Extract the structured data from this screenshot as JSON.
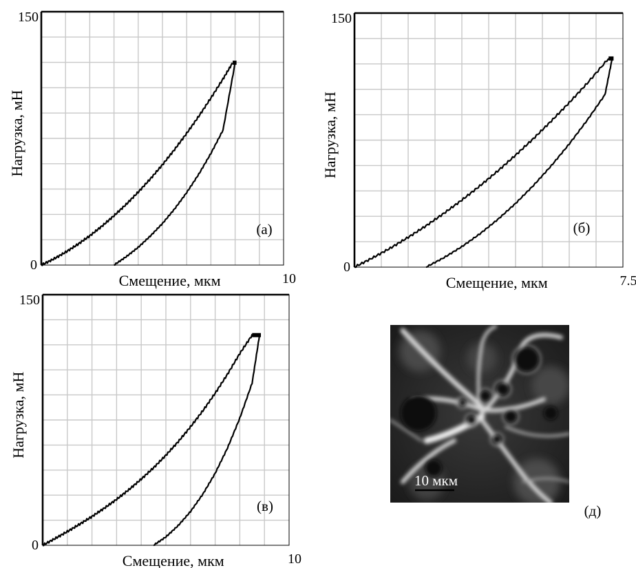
{
  "chart_data": [
    {
      "type": "line",
      "panel_tag": "(а)",
      "xlabel": "Смещение, мкм",
      "ylabel": "Нагрузка, мН",
      "xlim": [
        0,
        10
      ],
      "ylim": [
        0,
        150
      ],
      "x_tick_labels": [
        "10"
      ],
      "y_tick_labels": [
        "0",
        "150"
      ],
      "grid": true,
      "series": [
        {
          "x": [
            0,
            0.5,
            1,
            1.5,
            2,
            2.5,
            3,
            3.5,
            4,
            4.5,
            5,
            5.5,
            6,
            6.5,
            7,
            7.5,
            7.9
          ],
          "y": [
            0,
            3.5,
            7.6,
            12.2,
            17.3,
            23,
            29.2,
            35.9,
            43.2,
            51,
            59.4,
            68.4,
            78,
            88.1,
            98.9,
            110.2,
            119.8
          ]
        },
        {
          "x": [
            3,
            3.5,
            4,
            4.5,
            5,
            5.5,
            6,
            6.5,
            7,
            7.5,
            8
          ],
          "y": [
            0,
            4.9,
            10.5,
            17.2,
            24.6,
            33.2,
            42.9,
            53.8,
            66.1,
            79.9,
            119.8
          ]
        }
      ]
    },
    {
      "type": "line",
      "panel_tag": "(б)",
      "xlabel": "Смещение, мкм",
      "ylabel": "Нагрузка, мН",
      "xlim": [
        0,
        7.5
      ],
      "ylim": [
        0,
        150
      ],
      "x_tick_labels": [
        "7.5"
      ],
      "y_tick_labels": [
        "0",
        "150"
      ],
      "grid": true,
      "series": [
        {
          "x": [
            0,
            0.5,
            1,
            1.5,
            2,
            2.5,
            3,
            3.5,
            4,
            4.5,
            5,
            5.5,
            6,
            6.5,
            7.1
          ],
          "y": [
            0,
            5.4,
            11.2,
            17.6,
            24.4,
            31.8,
            39.6,
            47.9,
            56.7,
            66.1,
            75.9,
            86.3,
            97.1,
            108.5,
            123.2
          ]
        },
        {
          "x": [
            2,
            2.5,
            3,
            3.5,
            4,
            4.5,
            5,
            5.5,
            6,
            6.5,
            7,
            7.2
          ],
          "y": [
            0,
            5.6,
            12.1,
            19.6,
            28.1,
            37.6,
            48.2,
            59.9,
            72.7,
            86.7,
            101.9,
            123.2
          ]
        }
      ]
    },
    {
      "type": "line",
      "panel_tag": "(в)",
      "xlabel": "Смещение, мкм",
      "ylabel": "Нагрузка, мН",
      "xlim": [
        0,
        10
      ],
      "ylim": [
        0,
        150
      ],
      "x_tick_labels": [
        "10"
      ],
      "y_tick_labels": [
        "0",
        "150"
      ],
      "grid": true,
      "series": [
        {
          "x": [
            0,
            0.5,
            1,
            1.5,
            2,
            2.5,
            3,
            3.5,
            4,
            4.5,
            5,
            5.5,
            6,
            6.5,
            7,
            7.5,
            8,
            8.5
          ],
          "y": [
            0,
            4,
            8.2,
            12.6,
            17.2,
            22.2,
            27.5,
            33.3,
            39.6,
            46.4,
            53.9,
            62,
            70.9,
            80.5,
            91,
            102.4,
            114.8,
            125.8
          ]
        },
        {
          "x": [
            4.5,
            5,
            5.5,
            6,
            6.5,
            7,
            7.5,
            8,
            8.5,
            8.8
          ],
          "y": [
            0,
            5,
            11.8,
            20.2,
            30.6,
            43.1,
            58.2,
            76.1,
            97.1,
            125.8
          ]
        }
      ]
    }
  ],
  "micrograph": {
    "panel_tag": "(д)",
    "scale_bar_label": "10 мкм"
  }
}
